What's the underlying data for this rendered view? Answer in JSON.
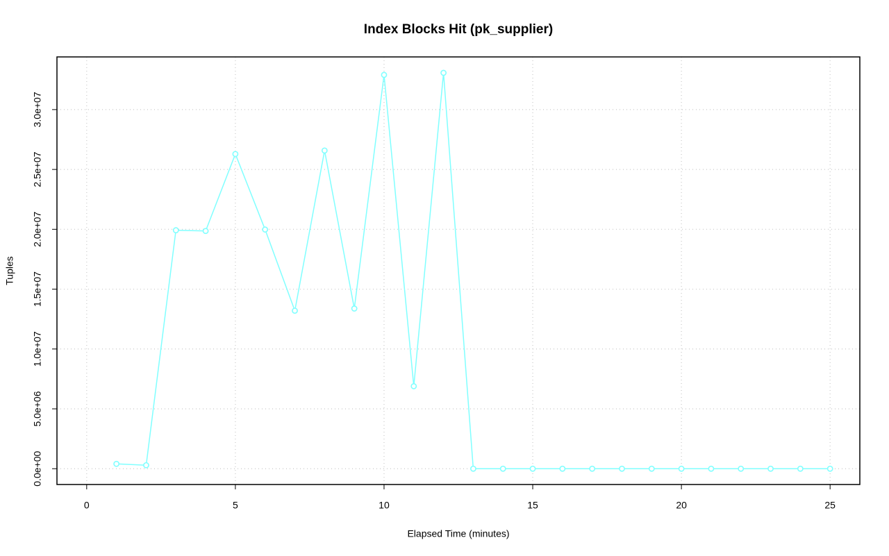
{
  "chart_data": {
    "type": "line",
    "title": "Index Blocks Hit (pk_supplier)",
    "x_label": "Elapsed Time (minutes)",
    "y_label": "Tuples",
    "x": [
      1,
      2,
      3,
      4,
      5,
      6,
      7,
      8,
      9,
      10,
      11,
      12,
      13,
      14,
      15,
      16,
      17,
      18,
      19,
      20,
      21,
      22,
      23,
      24,
      25
    ],
    "series": [
      {
        "color": "#80ffff",
        "values": [
          405000,
          290000,
          19920000,
          19860000,
          26290000,
          19980000,
          13200000,
          26580000,
          13380000,
          32900000,
          6890000,
          33070000,
          0,
          0,
          0,
          0,
          0,
          0,
          0,
          0,
          0,
          0,
          0,
          0,
          0
        ]
      }
    ],
    "xlim": [
      -1,
      26
    ],
    "ylim": [
      -1320000,
      34400000
    ],
    "xticks": [
      0,
      5,
      10,
      15,
      20,
      25
    ],
    "yticks": [
      {
        "value": 0,
        "label": "0.0e+00"
      },
      {
        "value": 5000000,
        "label": "5.0e+06"
      },
      {
        "value": 10000000,
        "label": "1.0e+07"
      },
      {
        "value": 15000000,
        "label": "1.5e+07"
      },
      {
        "value": 20000000,
        "label": "2.0e+07"
      },
      {
        "value": 25000000,
        "label": "2.5e+07"
      },
      {
        "value": 30000000,
        "label": "3.0e+07"
      }
    ],
    "grid": true
  }
}
